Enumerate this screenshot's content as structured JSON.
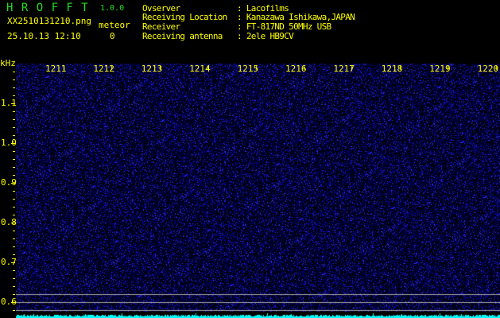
{
  "app": {
    "name": "H R O F F T",
    "version": "1.0.0"
  },
  "file": {
    "name": "XX2510131210.png",
    "datetime": "25.10.13 12:10"
  },
  "meteor": {
    "label": "meteor",
    "count": "0"
  },
  "info": [
    {
      "label": "Ovserver",
      "value": ": Lacofilms"
    },
    {
      "label": "Receiving Location",
      "value": ": Kanazawa Ishikawa,JAPAN"
    },
    {
      "label": "Receiver",
      "value": ": FT-817ND 50MHz USB"
    },
    {
      "label": "Receiving antenna",
      "value": ": 2ele HB9CV"
    }
  ],
  "spectrogram": {
    "unit": "kHz",
    "x_ticks": [
      "1211",
      "1212",
      "1213",
      "1214",
      "1215",
      "1216",
      "1217",
      "1218",
      "1219",
      "1220"
    ],
    "y_ticks": [
      "1.1",
      "1.0",
      "0.9",
      "0.8",
      "0.7",
      "0.6"
    ],
    "colors": {
      "background": "#000010",
      "noise": "#2020e0",
      "level_bar": "#00ffff",
      "reference_lines": "#aaaaaa",
      "text": "#ffff00"
    }
  }
}
